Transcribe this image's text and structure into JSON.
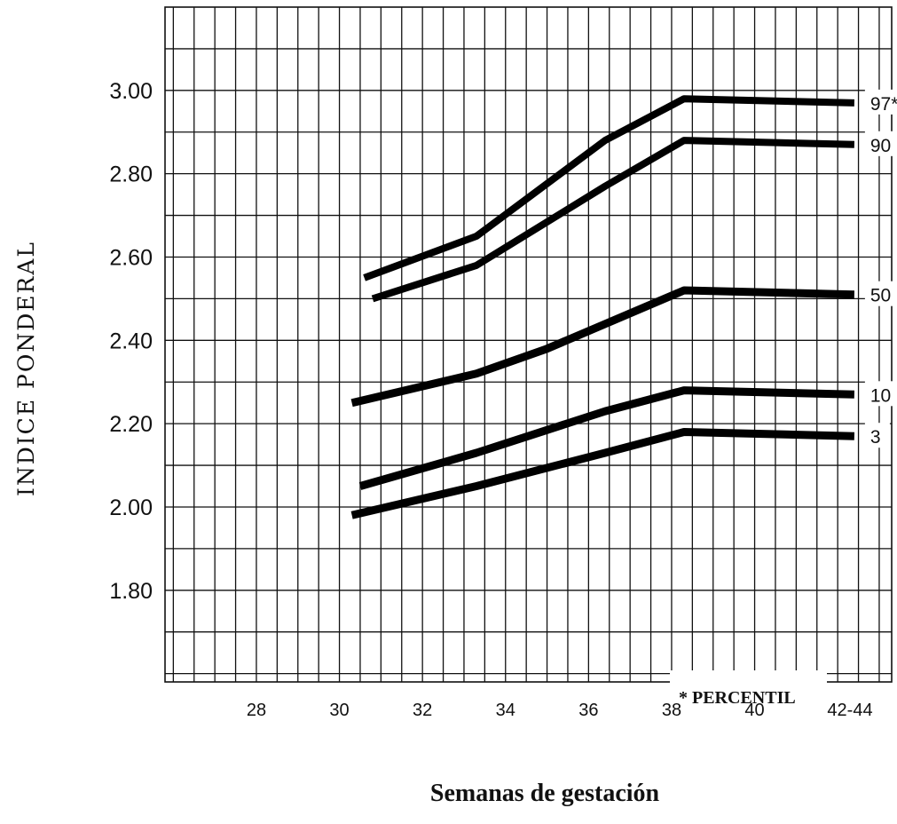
{
  "chart_data": {
    "type": "line",
    "title": "",
    "xlabel": "Semanas de gestación",
    "ylabel": "INDICE PONDERAL",
    "annotation": "* PERCENTIL",
    "x_ticks": [
      {
        "value": 28,
        "label": "28"
      },
      {
        "value": 30,
        "label": "30"
      },
      {
        "value": 32,
        "label": "32"
      },
      {
        "value": 34,
        "label": "34"
      },
      {
        "value": 36,
        "label": "36"
      },
      {
        "value": 38,
        "label": "38"
      },
      {
        "value": 40,
        "label": "40"
      },
      {
        "value": 42,
        "label": "42-44"
      }
    ],
    "y_ticks": [
      {
        "value": 1.8,
        "label": "1.80"
      },
      {
        "value": 2.0,
        "label": "2.00"
      },
      {
        "value": 2.2,
        "label": "2.20"
      },
      {
        "value": 2.4,
        "label": "2.40"
      },
      {
        "value": 2.6,
        "label": "2.60"
      },
      {
        "value": 2.8,
        "label": "2.80"
      },
      {
        "value": 3.0,
        "label": "3.00"
      }
    ],
    "xlim": [
      25.8,
      43.3
    ],
    "ylim": [
      1.58,
      3.2
    ],
    "grid": true,
    "series": [
      {
        "name": "97*",
        "points": [
          [
            30.6,
            2.55
          ],
          [
            33.3,
            2.65
          ],
          [
            36.4,
            2.88
          ],
          [
            38.3,
            2.98
          ],
          [
            42.4,
            2.97
          ]
        ]
      },
      {
        "name": "90",
        "points": [
          [
            30.8,
            2.5
          ],
          [
            33.3,
            2.58
          ],
          [
            36.4,
            2.77
          ],
          [
            38.3,
            2.88
          ],
          [
            42.4,
            2.87
          ]
        ]
      },
      {
        "name": "50",
        "points": [
          [
            30.3,
            2.25
          ],
          [
            33.3,
            2.32
          ],
          [
            35.0,
            2.38
          ],
          [
            38.3,
            2.52
          ],
          [
            42.4,
            2.51
          ]
        ]
      },
      {
        "name": "10",
        "points": [
          [
            30.5,
            2.05
          ],
          [
            33.3,
            2.13
          ],
          [
            36.4,
            2.23
          ],
          [
            38.3,
            2.28
          ],
          [
            42.4,
            2.27
          ]
        ]
      },
      {
        "name": "3",
        "points": [
          [
            30.3,
            1.98
          ],
          [
            33.3,
            2.05
          ],
          [
            36.4,
            2.13
          ],
          [
            38.3,
            2.18
          ],
          [
            42.4,
            2.17
          ]
        ]
      }
    ]
  }
}
